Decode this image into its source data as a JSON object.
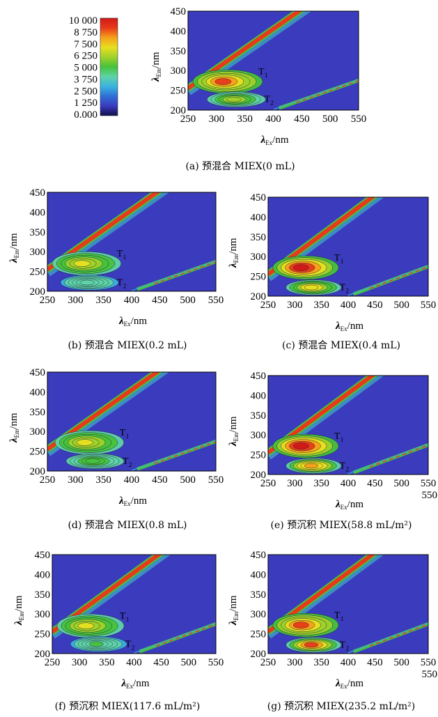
{
  "chart_data": {
    "type": "heatmap",
    "colorbar": {
      "ticks": [
        "10 000",
        "8 750",
        "7 500",
        "6 250",
        "5 000",
        "3 750",
        "2 500",
        "1 250",
        "0.000"
      ],
      "range": [
        0,
        10000
      ],
      "colors": [
        "#10104a",
        "#3b3bc0",
        "#2f6fd6",
        "#3ab4e0",
        "#5fd3a8",
        "#46c23c",
        "#9fd22a",
        "#e8e020",
        "#f5a01a",
        "#e83a1a",
        "#d01818"
      ]
    },
    "x_ticks": [
      "250",
      "300",
      "350",
      "400",
      "450",
      "500",
      "550"
    ],
    "y_ticks": [
      "200",
      "250",
      "300",
      "350",
      "400",
      "450"
    ],
    "xlim": [
      250,
      550
    ],
    "ylim": [
      200,
      450
    ],
    "xlabel_main": "λ",
    "xlabel_sub": "Ex",
    "xlabel_unit": "/nm",
    "ylabel_main": "λ",
    "ylabel_sub": "Em",
    "ylabel_unit": "/nm",
    "peak_main": "T",
    "panels": [
      {
        "id": "a",
        "caption": "(a) 预混合 MIEX(0 mL)",
        "extra_tick": "",
        "peaks": [
          {
            "ex": 310,
            "em": 272,
            "intensity": 0.9
          },
          {
            "ex": 330,
            "em": 227,
            "intensity": 0.45
          }
        ]
      },
      {
        "id": "b",
        "caption": "(b) 预混合 MIEX(0.2 mL)",
        "extra_tick": "",
        "peaks": [
          {
            "ex": 310,
            "em": 270,
            "intensity": 0.55
          },
          {
            "ex": 320,
            "em": 222,
            "intensity": 0.2
          }
        ]
      },
      {
        "id": "c",
        "caption": "(c) 预混合 MIEX(0.4 mL)",
        "extra_tick": "",
        "peaks": [
          {
            "ex": 310,
            "em": 272,
            "intensity": 0.95
          },
          {
            "ex": 330,
            "em": 222,
            "intensity": 0.6
          }
        ]
      },
      {
        "id": "d",
        "caption": "(d) 预混合 MIEX(0.8 mL)",
        "extra_tick": "",
        "peaks": [
          {
            "ex": 315,
            "em": 272,
            "intensity": 0.55
          },
          {
            "ex": 330,
            "em": 225,
            "intensity": 0.35
          }
        ]
      },
      {
        "id": "e",
        "caption": "(e) 预沉积 MIEX(58.8 mL/m²)",
        "extra_tick": "550",
        "peaks": [
          {
            "ex": 310,
            "em": 272,
            "intensity": 0.95
          },
          {
            "ex": 330,
            "em": 222,
            "intensity": 0.75
          }
        ]
      },
      {
        "id": "f",
        "caption": "(f) 预沉积 MIEX(117.6 mL/m²)",
        "extra_tick": "",
        "peaks": [
          {
            "ex": 310,
            "em": 270,
            "intensity": 0.55
          },
          {
            "ex": 330,
            "em": 224,
            "intensity": 0.25
          }
        ]
      },
      {
        "id": "g",
        "caption": "(g) 预沉积 MIEX(235.2 mL/m²)",
        "extra_tick": "550",
        "peaks": [
          {
            "ex": 310,
            "em": 272,
            "intensity": 0.9
          },
          {
            "ex": 330,
            "em": 222,
            "intensity": 0.8
          }
        ]
      }
    ]
  }
}
